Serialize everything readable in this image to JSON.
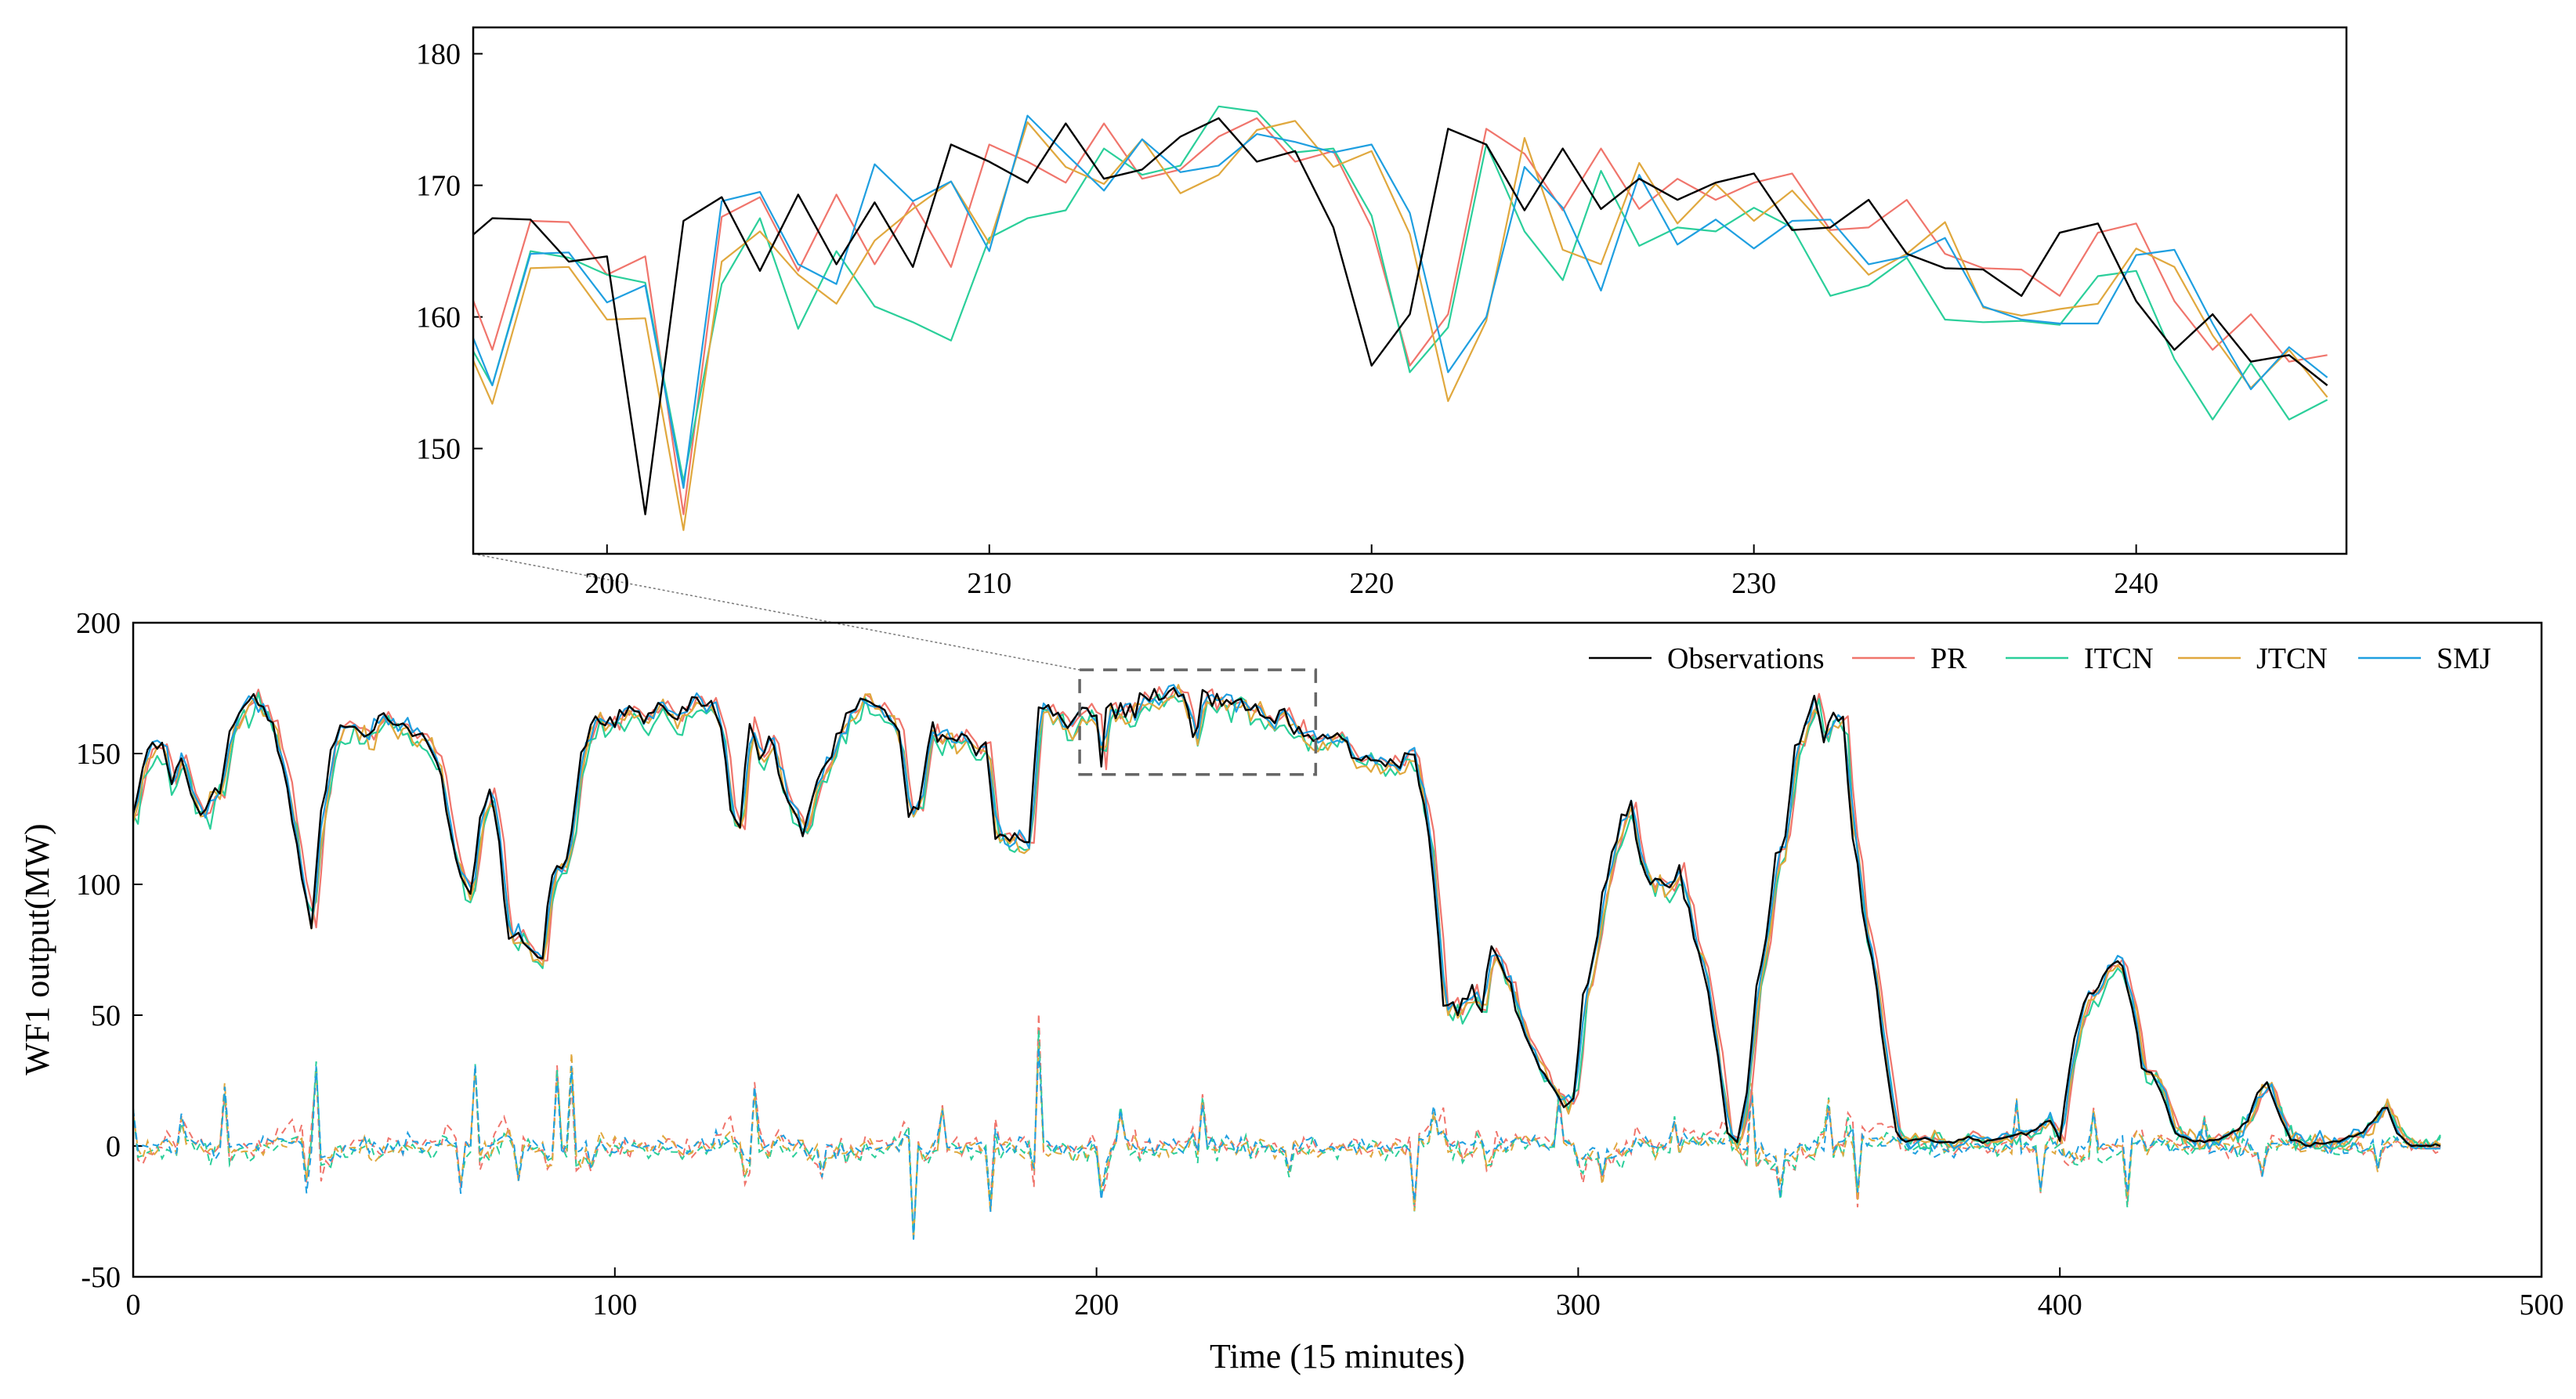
{
  "chart_data": [
    {
      "id": "inset",
      "type": "line",
      "title": "",
      "xlabel": "",
      "ylabel": "",
      "xlim": [
        196.5,
        245.5
      ],
      "ylim": [
        142,
        182
      ],
      "xticks": [
        200,
        210,
        220,
        230,
        240
      ],
      "yticks": [
        150,
        160,
        170,
        180
      ],
      "x_start": 196,
      "series": [
        {
          "name": "Observations",
          "color": "#000000",
          "values": [
            165,
            167.5,
            167.4,
            164.2,
            164.6,
            145,
            167.3,
            169.1,
            163.5,
            169.3,
            164,
            168.7,
            163.8,
            173.1,
            171.8,
            170.2,
            174.7,
            170.5,
            171.2,
            173.7,
            175.1,
            171.8,
            172.6,
            166.8,
            156.3,
            160.2,
            174.3,
            173.1,
            168.1,
            172.8,
            168.2,
            170.5,
            168.9,
            170.2,
            170.9,
            166.6,
            166.8,
            168.9,
            164.8,
            163.7,
            163.6,
            161.6,
            166.4,
            167.1,
            161.2,
            157.5,
            160.2,
            156.6,
            157.1,
            154.8
          ]
        },
        {
          "name": "PR",
          "color": "#f0756c",
          "values": [
            165,
            157.5,
            167.3,
            167.2,
            163.2,
            164.6,
            145,
            167.6,
            169.1,
            163.5,
            169.3,
            164,
            168.7,
            163.8,
            173.1,
            171.8,
            170.2,
            174.7,
            170.5,
            171.2,
            173.7,
            175.1,
            171.8,
            172.6,
            166.8,
            156.3,
            160.2,
            174.3,
            172.4,
            168.1,
            172.8,
            168.2,
            170.5,
            168.9,
            170.2,
            170.9,
            166.6,
            166.8,
            168.9,
            164.8,
            163.7,
            163.6,
            161.6,
            166.4,
            167.1,
            161.2,
            157.5,
            160.2,
            156.6,
            157.1
          ]
        },
        {
          "name": "ITCN",
          "color": "#2bcf9a",
          "values": [
            160,
            154.8,
            165,
            164.5,
            163.2,
            162.6,
            147.5,
            162.5,
            167.5,
            159.1,
            165,
            160.8,
            159.6,
            158.2,
            166,
            167.5,
            168.1,
            172.8,
            170.8,
            171.5,
            176,
            175.6,
            172.5,
            172.8,
            167.7,
            155.8,
            159.2,
            173.1,
            166.5,
            162.8,
            171.1,
            165.4,
            166.8,
            166.5,
            168.3,
            166.8,
            161.6,
            162.4,
            164.5,
            159.8,
            159.6,
            159.7,
            159.4,
            163.1,
            163.5,
            156.8,
            152.2,
            156.5,
            152.2,
            153.7
          ]
        },
        {
          "name": "JTCN",
          "color": "#e0a83e",
          "values": [
            160,
            153.4,
            163.7,
            163.8,
            159.8,
            159.9,
            143.8,
            164.2,
            166.5,
            163.2,
            161,
            165.8,
            168.2,
            170.3,
            165.6,
            174.8,
            171.4,
            170.1,
            173.5,
            169.4,
            170.8,
            174.2,
            174.9,
            171.4,
            172.6,
            166.3,
            153.6,
            159.7,
            173.6,
            165.1,
            164,
            171.7,
            167.1,
            170.1,
            167.3,
            169.6,
            166.4,
            163.2,
            164.8,
            167.2,
            160.7,
            160.1,
            160.6,
            161,
            165.2,
            163.8,
            158.6,
            154.6,
            157.5,
            153.9
          ]
        },
        {
          "name": "SMJ",
          "color": "#1f9fe0",
          "values": [
            162,
            154.8,
            164.8,
            164.9,
            161.1,
            162.4,
            147,
            168.8,
            169.5,
            164,
            162.5,
            171.6,
            168.8,
            170.3,
            165,
            175.3,
            172.4,
            169.6,
            173.5,
            171,
            171.5,
            173.9,
            173.3,
            172.5,
            173.1,
            167.9,
            155.8,
            160,
            171.4,
            168.3,
            162,
            170.8,
            165.5,
            167.4,
            165.2,
            167.3,
            167.4,
            164,
            164.6,
            166,
            160.8,
            159.8,
            159.5,
            159.5,
            164.7,
            165.1,
            159.5,
            154.5,
            157.7,
            155.4
          ]
        }
      ]
    },
    {
      "id": "main",
      "type": "line",
      "title": "",
      "xlabel": "Time (15 minutes)",
      "ylabel": "WF1 output(MW)",
      "xlim": [
        0,
        500
      ],
      "ylim": [
        -50,
        200
      ],
      "xticks": [
        0,
        100,
        200,
        300,
        400,
        500
      ],
      "yticks": [
        -50,
        0,
        50,
        100,
        150,
        200
      ],
      "legend_location": "top-right",
      "zoom_box": {
        "x": [
          196.5,
          245.5
        ],
        "y": [
          142,
          182
        ]
      },
      "observation_anchors": [
        [
          0,
          125
        ],
        [
          3,
          152
        ],
        [
          6,
          153
        ],
        [
          8,
          140
        ],
        [
          10,
          147
        ],
        [
          12,
          135
        ],
        [
          14,
          127
        ],
        [
          16,
          135
        ],
        [
          18,
          135
        ],
        [
          20,
          158
        ],
        [
          22,
          164
        ],
        [
          25,
          172
        ],
        [
          28,
          165
        ],
        [
          31,
          145
        ],
        [
          34,
          115
        ],
        [
          37,
          82
        ],
        [
          39,
          130
        ],
        [
          41,
          150
        ],
        [
          43,
          160
        ],
        [
          46,
          160
        ],
        [
          49,
          157
        ],
        [
          52,
          165
        ],
        [
          55,
          160
        ],
        [
          58,
          157
        ],
        [
          61,
          155
        ],
        [
          64,
          140
        ],
        [
          67,
          110
        ],
        [
          70,
          95
        ],
        [
          72,
          125
        ],
        [
          74,
          135
        ],
        [
          76,
          115
        ],
        [
          78,
          80
        ],
        [
          80,
          78
        ],
        [
          82,
          75
        ],
        [
          85,
          72
        ],
        [
          87,
          105
        ],
        [
          90,
          110
        ],
        [
          93,
          150
        ],
        [
          96,
          165
        ],
        [
          100,
          162
        ],
        [
          103,
          168
        ],
        [
          106,
          163
        ],
        [
          110,
          167
        ],
        [
          113,
          165
        ],
        [
          116,
          170
        ],
        [
          120,
          168
        ],
        [
          122,
          163
        ],
        [
          124,
          130
        ],
        [
          126,
          123
        ],
        [
          128,
          162
        ],
        [
          130,
          148
        ],
        [
          132,
          157
        ],
        [
          134,
          143
        ],
        [
          136,
          130
        ],
        [
          139,
          120
        ],
        [
          142,
          140
        ],
        [
          145,
          150
        ],
        [
          148,
          163
        ],
        [
          152,
          170
        ],
        [
          156,
          165
        ],
        [
          159,
          160
        ],
        [
          161,
          125
        ],
        [
          163,
          130
        ],
        [
          166,
          160
        ],
        [
          169,
          155
        ],
        [
          172,
          155
        ],
        [
          175,
          152
        ],
        [
          177,
          155
        ],
        [
          179,
          120
        ],
        [
          182,
          118
        ],
        [
          186,
          118
        ],
        [
          188,
          168
        ],
        [
          190,
          168
        ],
        [
          193,
          162
        ],
        [
          196,
          165
        ],
        [
          199,
          164
        ],
        [
          201,
          145
        ],
        [
          202,
          167
        ],
        [
          205,
          169
        ],
        [
          210,
          172
        ],
        [
          215,
          175
        ],
        [
          219,
          167
        ],
        [
          220,
          156
        ],
        [
          222,
          174
        ],
        [
          225,
          172
        ],
        [
          230,
          171
        ],
        [
          235,
          164
        ],
        [
          240,
          161
        ],
        [
          245,
          155
        ],
        [
          250,
          157
        ],
        [
          255,
          147
        ],
        [
          260,
          147
        ],
        [
          263,
          148
        ],
        [
          266,
          150
        ],
        [
          268,
          130
        ],
        [
          270,
          100
        ],
        [
          272,
          55
        ],
        [
          275,
          52
        ],
        [
          278,
          60
        ],
        [
          280,
          50
        ],
        [
          282,
          78
        ],
        [
          285,
          65
        ],
        [
          287,
          55
        ],
        [
          290,
          38
        ],
        [
          292,
          30
        ],
        [
          295,
          22
        ],
        [
          297,
          15
        ],
        [
          299,
          18
        ],
        [
          301,
          55
        ],
        [
          303,
          70
        ],
        [
          305,
          95
        ],
        [
          307,
          110
        ],
        [
          309,
          128
        ],
        [
          311,
          130
        ],
        [
          313,
          110
        ],
        [
          315,
          100
        ],
        [
          317,
          104
        ],
        [
          319,
          100
        ],
        [
          321,
          105
        ],
        [
          323,
          88
        ],
        [
          326,
          65
        ],
        [
          329,
          35
        ],
        [
          331,
          5
        ],
        [
          333,
          2
        ],
        [
          335,
          20
        ],
        [
          337,
          60
        ],
        [
          339,
          80
        ],
        [
          341,
          110
        ],
        [
          343,
          118
        ],
        [
          345,
          150
        ],
        [
          347,
          160
        ],
        [
          349,
          170
        ],
        [
          351,
          155
        ],
        [
          353,
          165
        ],
        [
          355,
          162
        ],
        [
          357,
          120
        ],
        [
          359,
          90
        ],
        [
          361,
          70
        ],
        [
          364,
          30
        ],
        [
          366,
          5
        ],
        [
          368,
          2
        ],
        [
          372,
          3
        ],
        [
          376,
          1
        ],
        [
          380,
          3
        ],
        [
          385,
          2
        ],
        [
          390,
          4
        ],
        [
          395,
          6
        ],
        [
          398,
          10
        ],
        [
          400,
          2
        ],
        [
          402,
          30
        ],
        [
          404,
          50
        ],
        [
          407,
          60
        ],
        [
          410,
          68
        ],
        [
          413,
          70
        ],
        [
          415,
          55
        ],
        [
          417,
          30
        ],
        [
          419,
          28
        ],
        [
          421,
          20
        ],
        [
          424,
          5
        ],
        [
          427,
          2
        ],
        [
          432,
          2
        ],
        [
          436,
          5
        ],
        [
          439,
          10
        ],
        [
          441,
          20
        ],
        [
          443,
          25
        ],
        [
          446,
          10
        ],
        [
          448,
          2
        ],
        [
          452,
          0
        ],
        [
          458,
          2
        ],
        [
          463,
          5
        ],
        [
          466,
          12
        ],
        [
          468,
          15
        ],
        [
          470,
          5
        ],
        [
          473,
          0
        ],
        [
          480,
          0
        ]
      ],
      "observation_detail_start": 196,
      "observation_detail": [
        165,
        167.5,
        167.4,
        164.2,
        164.6,
        145,
        167.3,
        169.1,
        163.5,
        169.3,
        164,
        168.7,
        163.8,
        173.1,
        171.8,
        170.2,
        174.7,
        170.5,
        171.2,
        173.7,
        175.1,
        171.8,
        172.6,
        166.8,
        156.3,
        160.2,
        174.3,
        173.1,
        168.1,
        172.8,
        168.2,
        170.5,
        168.9,
        170.2,
        170.9,
        166.6,
        166.8,
        168.9,
        164.8,
        163.7,
        163.6,
        161.6,
        166.4,
        167.1,
        161.2,
        157.5,
        160.2,
        156.6,
        157.1,
        154.8
      ],
      "series": [
        {
          "name": "Observations",
          "color": "#000000",
          "lag": 0,
          "bias": 0,
          "noise": 0
        },
        {
          "name": "PR",
          "color": "#f0756c",
          "lag": 1,
          "bias": 0,
          "noise": 1.5
        },
        {
          "name": "ITCN",
          "color": "#2bcf9a",
          "lag": 0.6,
          "bias": -3,
          "noise": 3.5
        },
        {
          "name": "JTCN",
          "color": "#e0a83e",
          "lag": 0.5,
          "bias": -1.5,
          "noise": 3
        },
        {
          "name": "SMJ",
          "color": "#1f9fe0",
          "lag": 0.4,
          "bias": 0,
          "noise": 2.5
        }
      ],
      "residual_extremes": [
        [
          0,
          15
        ],
        [
          10,
          12
        ],
        [
          19,
          24
        ],
        [
          36,
          -18
        ],
        [
          38,
          33
        ],
        [
          68,
          -18
        ],
        [
          71,
          30
        ],
        [
          80,
          -14
        ],
        [
          88,
          35
        ],
        [
          91,
          34
        ],
        [
          95,
          -10
        ],
        [
          129,
          25
        ],
        [
          143,
          -12
        ],
        [
          162,
          -35
        ],
        [
          168,
          15
        ],
        [
          178,
          -30
        ],
        [
          188,
          50
        ],
        [
          201,
          -20
        ],
        [
          205,
          15
        ],
        [
          222,
          20
        ],
        [
          240,
          -12
        ],
        [
          266,
          -25
        ],
        [
          270,
          15
        ],
        [
          296,
          22
        ],
        [
          305,
          -15
        ],
        [
          320,
          12
        ],
        [
          336,
          25
        ],
        [
          342,
          -20
        ],
        [
          352,
          18
        ],
        [
          358,
          -25
        ],
        [
          391,
          22
        ],
        [
          396,
          -18
        ],
        [
          407,
          15
        ],
        [
          414,
          -25
        ],
        [
          430,
          12
        ],
        [
          442,
          -12
        ],
        [
          466,
          -10
        ]
      ]
    }
  ]
}
